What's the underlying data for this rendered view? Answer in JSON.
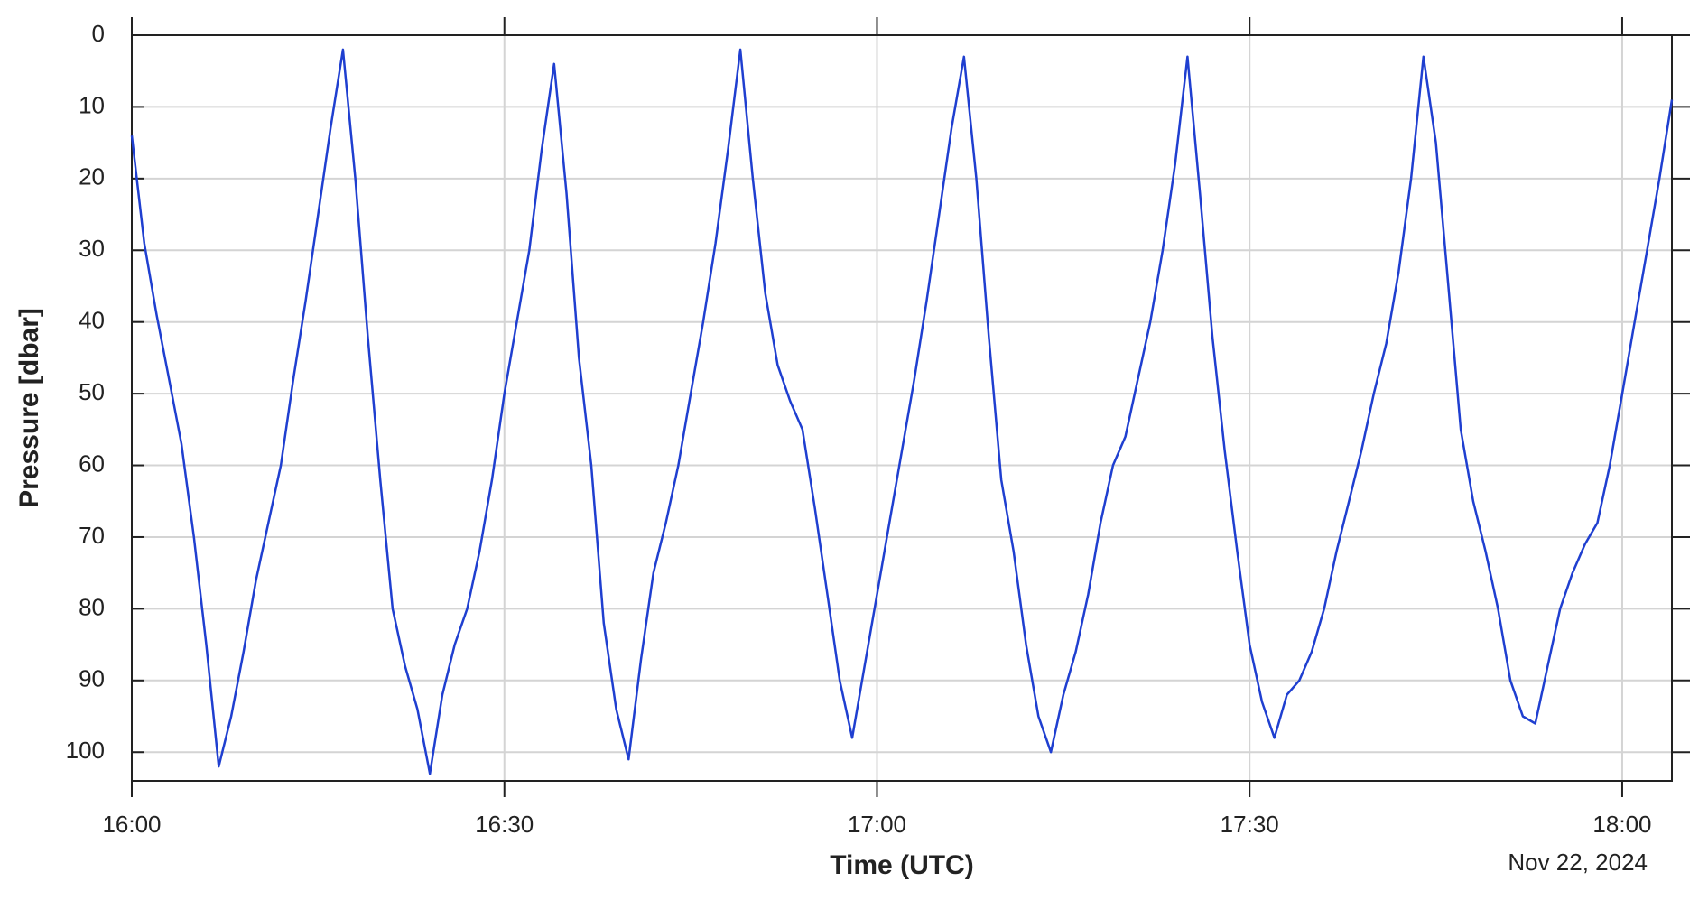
{
  "chart_data": {
    "type": "line",
    "xlabel": "Time (UTC)",
    "ylabel": "Pressure [dbar]",
    "x_date_label": "Nov 22, 2024",
    "x": [
      "16:00",
      "16:01",
      "16:02",
      "16:03",
      "16:04",
      "16:05",
      "16:06",
      "16:07",
      "16:08",
      "16:09",
      "16:10",
      "16:11",
      "16:12",
      "16:13",
      "16:14",
      "16:15",
      "16:16",
      "16:17",
      "16:18",
      "16:19",
      "16:20",
      "16:21",
      "16:22",
      "16:23",
      "16:24",
      "16:25",
      "16:26",
      "16:27",
      "16:28",
      "16:29",
      "16:30",
      "16:31",
      "16:32",
      "16:33",
      "16:34",
      "16:35",
      "16:36",
      "16:37",
      "16:38",
      "16:39",
      "16:40",
      "16:41",
      "16:42",
      "16:43",
      "16:44",
      "16:45",
      "16:46",
      "16:47",
      "16:48",
      "16:49",
      "16:50",
      "16:51",
      "16:52",
      "16:53",
      "16:54",
      "16:55",
      "16:56",
      "16:57",
      "16:58",
      "16:59",
      "17:00",
      "17:01",
      "17:02",
      "17:03",
      "17:04",
      "17:05",
      "17:06",
      "17:07",
      "17:08",
      "17:09",
      "17:10",
      "17:11",
      "17:12",
      "17:13",
      "17:14",
      "17:15",
      "17:16",
      "17:17",
      "17:18",
      "17:19",
      "17:20",
      "17:21",
      "17:22",
      "17:23",
      "17:24",
      "17:25",
      "17:26",
      "17:27",
      "17:28",
      "17:29",
      "17:30",
      "17:31",
      "17:32",
      "17:33",
      "17:34",
      "17:35",
      "17:36",
      "17:37",
      "17:38",
      "17:39",
      "17:40",
      "17:41",
      "17:42",
      "17:43",
      "17:44",
      "17:45",
      "17:46",
      "17:47",
      "17:48",
      "17:49",
      "17:50",
      "17:51",
      "17:52",
      "17:53",
      "17:54",
      "17:55",
      "17:56",
      "17:57",
      "17:58",
      "17:59",
      "18:00",
      "18:01",
      "18:02",
      "18:03",
      "18:04"
    ],
    "series": [
      {
        "name": "Pressure",
        "color": "#1f3fd0",
        "values": [
          14,
          29,
          39,
          48,
          57,
          70,
          85,
          102,
          95,
          86,
          76,
          68,
          60,
          48,
          37,
          25,
          13,
          2,
          20,
          42,
          62,
          80,
          88,
          94,
          103,
          92,
          85,
          80,
          72,
          62,
          50,
          40,
          30,
          16,
          4,
          22,
          45,
          60,
          82,
          94,
          101,
          87,
          75,
          68,
          60,
          50,
          40,
          29,
          16,
          2,
          20,
          36,
          46,
          51,
          55,
          66,
          78,
          90,
          98,
          88,
          78,
          68,
          58,
          48,
          37,
          25,
          13,
          3,
          20,
          42,
          62,
          72,
          85,
          95,
          100,
          92,
          86,
          78,
          68,
          60,
          56,
          48,
          40,
          30,
          18,
          3,
          22,
          42,
          58,
          72,
          85,
          93,
          98,
          92,
          90,
          86,
          80,
          72,
          65,
          58,
          50,
          43,
          33,
          20,
          3,
          15,
          35,
          55,
          65,
          72,
          80,
          90,
          95,
          96,
          88,
          80,
          75,
          71,
          68,
          60,
          50,
          40,
          30,
          20,
          9
        ]
      }
    ],
    "xlim": [
      "16:00",
      "18:04"
    ],
    "xticks": [
      "16:00",
      "16:30",
      "17:00",
      "17:30",
      "18:00"
    ],
    "ylim": [
      0,
      104
    ],
    "yticks": [
      0,
      10,
      20,
      30,
      40,
      50,
      60,
      70,
      80,
      90,
      100
    ],
    "y_reversed": true,
    "grid": true
  }
}
